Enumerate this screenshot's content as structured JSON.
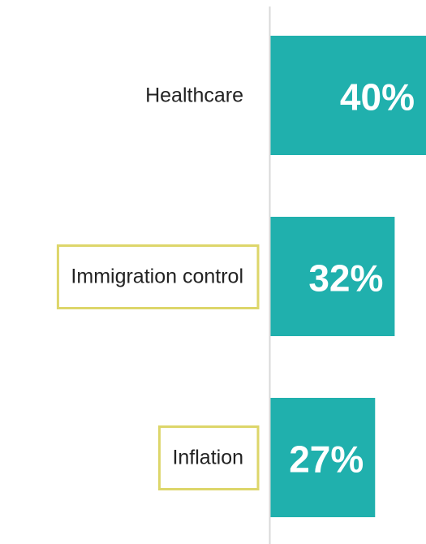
{
  "chart_data": {
    "type": "bar",
    "orientation": "horizontal",
    "categories": [
      "Healthcare",
      "Immigration control",
      "Inflation"
    ],
    "values": [
      40,
      32,
      27
    ],
    "value_labels": [
      "40%",
      "32%",
      "27%"
    ],
    "color": "#20b0ad",
    "highlighted": [
      false,
      true,
      true
    ],
    "highlight_color": "#ddd66a",
    "xlim": [
      0,
      40
    ]
  }
}
